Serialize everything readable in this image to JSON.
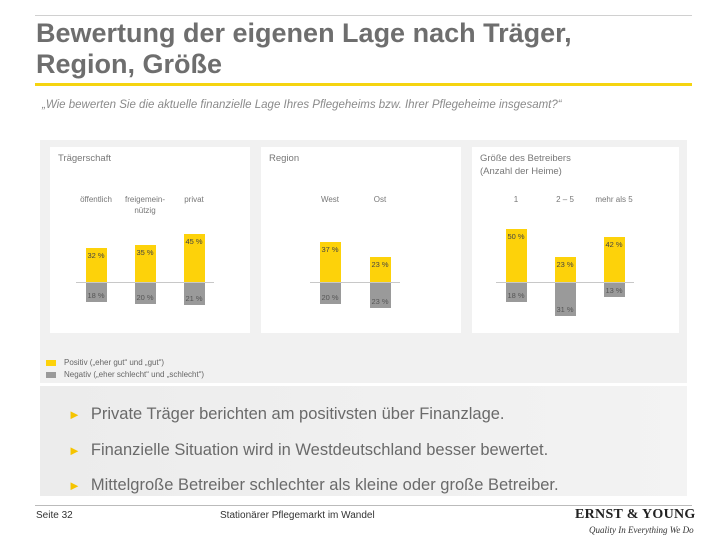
{
  "slide": {
    "title_line1": "Bewertung der eigenen Lage nach Träger,",
    "title_line2": "Region, Größe",
    "question": "„Wie bewerten Sie die aktuelle finanzielle Lage Ihres Pflegeheims bzw. Ihrer Pflegeheime insgesamt?“",
    "bullets": [
      "Private Träger berichten am positivsten über Finanzlage.",
      "Finanzielle Situation wird in Westdeutschland besser bewertet.",
      "Mittelgroße Betreiber schlechter als kleine oder große Betreiber."
    ],
    "bullet_marker": "►",
    "footer_left": "Seite 32",
    "footer_center": "Stationärer Pflegemarkt im Wandel",
    "logo_text": "ERNST & YOUNG",
    "logo_tagline": "Quality In Everything We Do"
  },
  "chart_data": [
    {
      "type": "bar",
      "title": "Trägerschaft",
      "categories": [
        "öffentlich",
        "freigemein-nützig",
        "privat"
      ],
      "series": [
        {
          "name": "Positiv („eher gut“ und „gut“)",
          "values": [
            32,
            35,
            45
          ]
        },
        {
          "name": "Negativ („eher schlecht“ und „schlecht“)",
          "values": [
            18,
            20,
            21
          ]
        }
      ],
      "value_labels_pos": [
        "32 %",
        "35 %",
        "45 %"
      ],
      "value_labels_neg": [
        "18 %",
        "20 %",
        "21 %"
      ]
    },
    {
      "type": "bar",
      "title": "Region",
      "categories": [
        "West",
        "Ost"
      ],
      "series": [
        {
          "name": "Positiv („eher gut“ und „gut“)",
          "values": [
            37,
            23
          ]
        },
        {
          "name": "Negativ („eher schlecht“ und „schlecht“)",
          "values": [
            20,
            23
          ]
        }
      ],
      "value_labels_pos": [
        "37 %",
        "23 %"
      ],
      "value_labels_neg": [
        "20 %",
        "23 %"
      ]
    },
    {
      "type": "bar",
      "title": "Größe des Betreibers",
      "subtitle": "(Anzahl der Heime)",
      "categories": [
        "1",
        "2 – 5",
        "mehr als 5"
      ],
      "series": [
        {
          "name": "Positiv („eher gut“ und „gut“)",
          "values": [
            50,
            23,
            42
          ]
        },
        {
          "name": "Negativ („eher schlecht“ und „schlecht“)",
          "values": [
            18,
            31,
            13
          ]
        }
      ],
      "value_labels_pos": [
        "50 %",
        "23 %",
        "42 %"
      ],
      "value_labels_neg": [
        "18 %",
        "31 %",
        "13 %"
      ]
    }
  ],
  "legend": {
    "positive_label": "Positiv („eher gut“ und „gut“)",
    "negative_label": "Negativ („eher schlecht“ und „schlecht“)",
    "positive_color": "#fdd20a",
    "negative_color": "#9a9a9a"
  }
}
